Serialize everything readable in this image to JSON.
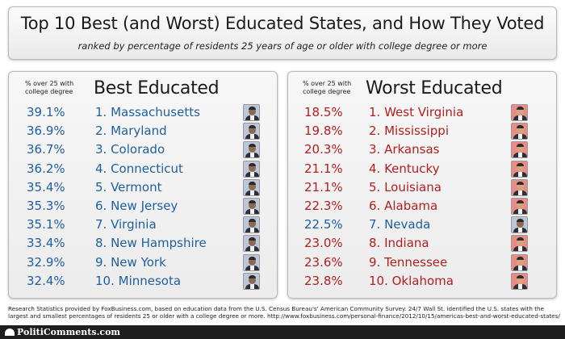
{
  "header": {
    "title": "Top 10 Best (and Worst) Educated States, and How They Voted",
    "subtitle": "ranked by percentage of residents 25 years of age or older with college degree or more"
  },
  "best": {
    "pct_caption": "% over 25 with college degree",
    "title": "Best Educated",
    "rows": [
      {
        "pct": "39.1%",
        "state": "1. Massachusetts",
        "winner": "obama"
      },
      {
        "pct": "36.9%",
        "state": "2. Maryland",
        "winner": "obama"
      },
      {
        "pct": "36.7%",
        "state": "3. Colorado",
        "winner": "obama"
      },
      {
        "pct": "36.2%",
        "state": "4. Connecticut",
        "winner": "obama"
      },
      {
        "pct": "35.4%",
        "state": "5. Vermont",
        "winner": "obama"
      },
      {
        "pct": "35.3%",
        "state": "6. New Jersey",
        "winner": "obama"
      },
      {
        "pct": "35.1%",
        "state": "7. Virginia",
        "winner": "obama"
      },
      {
        "pct": "33.4%",
        "state": "8. New Hampshire",
        "winner": "obama"
      },
      {
        "pct": "32.9%",
        "state": "9. New York",
        "winner": "obama"
      },
      {
        "pct": "32.4%",
        "state": "10. Minnesota",
        "winner": "obama"
      }
    ]
  },
  "worst": {
    "pct_caption": "% over 25 with college degree",
    "title": "Worst Educated",
    "rows": [
      {
        "pct": "18.5%",
        "state": "1. West Virginia",
        "winner": "romney"
      },
      {
        "pct": "19.8%",
        "state": "2. Mississippi",
        "winner": "romney"
      },
      {
        "pct": "20.3%",
        "state": "3. Arkansas",
        "winner": "romney"
      },
      {
        "pct": "21.1%",
        "state": "4. Kentucky",
        "winner": "romney"
      },
      {
        "pct": "21.1%",
        "state": "5. Louisiana",
        "winner": "romney"
      },
      {
        "pct": "22.3%",
        "state": "6. Alabama",
        "winner": "romney"
      },
      {
        "pct": "22.5%",
        "state": "7. Nevada",
        "winner": "obama"
      },
      {
        "pct": "23.0%",
        "state": "8. Indiana",
        "winner": "romney"
      },
      {
        "pct": "23.6%",
        "state": "9. Tennessee",
        "winner": "romney"
      },
      {
        "pct": "23.8%",
        "state": "10. Oklahoma",
        "winner": "romney"
      }
    ]
  },
  "footnote": "Research Statistics provided by FoxBusiness.com, based on education data from the U.S. Census Bureau's' American Community Survey. 24/7 Wall St. identified the U.S. states with the largest and smallest percentages of residents 25 or older with a college degree or more. http://www.foxbusiness.com/personal-finance/2012/10/15/americas-best-and-worst-educated-states/",
  "footer": {
    "logo": "PolitiComments.com",
    "icon": "capitol-icon"
  },
  "colors": {
    "obama_text": "#1f5f9e",
    "romney_text": "#b02020",
    "obama_bg": "#bcc6d6",
    "romney_bg": "#e88c85"
  }
}
